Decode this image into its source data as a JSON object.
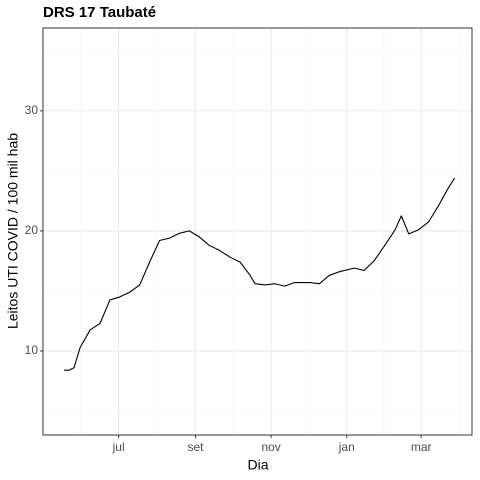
{
  "chart_data": {
    "type": "line",
    "title": "DRS 17 Taubaté",
    "x_label": "Dia",
    "y_label": "Leitos UTI COVID / 100 mil hab",
    "x": [
      -44,
      -40,
      -36,
      -31,
      -23,
      -15,
      -7,
      1,
      9,
      17,
      25,
      33,
      41,
      49,
      57,
      65,
      73,
      81,
      90,
      98,
      106,
      110,
      118,
      126,
      134,
      142,
      154,
      162,
      170,
      178,
      190,
      198,
      206,
      214,
      223,
      228,
      234,
      242,
      250,
      258,
      266,
      271
    ],
    "series": [
      {
        "name": "DRS 17 Taubaté",
        "color": "#000000",
        "values": [
          8.4,
          8.4,
          8.6,
          10.3,
          11.75,
          12.3,
          14.25,
          14.5,
          14.9,
          15.5,
          17.4,
          19.2,
          19.4,
          19.8,
          20.0,
          19.5,
          18.8,
          18.4,
          17.8,
          17.4,
          16.3,
          15.6,
          15.5,
          15.6,
          15.4,
          15.7,
          15.7,
          15.6,
          16.3,
          16.6,
          16.9,
          16.7,
          17.5,
          18.7,
          20.1,
          21.25,
          19.75,
          20.1,
          20.75,
          22.1,
          23.6,
          24.4
        ]
      }
    ],
    "xlim": [
      -61,
      285
    ],
    "ylim": [
      3,
      36.9
    ],
    "xticks": [
      {
        "value": 0,
        "label": "jul"
      },
      {
        "value": 62,
        "label": "set"
      },
      {
        "value": 123,
        "label": "nov"
      },
      {
        "value": 184,
        "label": "jan"
      },
      {
        "value": 244,
        "label": "mar"
      }
    ],
    "yticks": [
      10,
      20,
      30
    ],
    "grid": true
  }
}
